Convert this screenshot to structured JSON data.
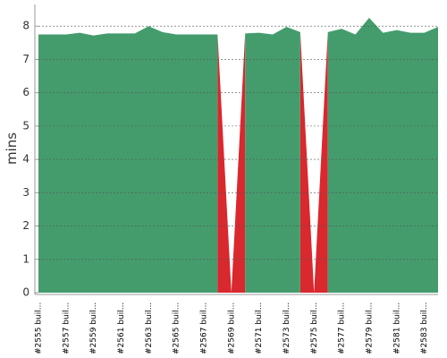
{
  "chart_data": {
    "type": "area",
    "y_label": "mins",
    "categories": [
      "#2555 buil...",
      null,
      "#2557 buil...",
      null,
      "#2559 buil...",
      null,
      "#2561 buil...",
      null,
      "#2563 buil...",
      null,
      "#2565 buil...",
      null,
      "#2567 buil...",
      null,
      "#2569 buil...",
      null,
      "#2571 buil...",
      null,
      "#2573 buil...",
      null,
      "#2575 buil...",
      null,
      "#2577 buil...",
      null,
      "#2579 buil...",
      null,
      "#2581 buil...",
      null,
      "#2583 buil...",
      null
    ],
    "series": [
      {
        "color": "#d9282e",
        "values": [
          null,
          null,
          null,
          null,
          null,
          null,
          null,
          null,
          null,
          null,
          null,
          null,
          null,
          7.75,
          0,
          7.78,
          null,
          null,
          null,
          7.82,
          0,
          7.82,
          null,
          null,
          null,
          null,
          null,
          null,
          null,
          null
        ]
      },
      {
        "color": "#449c6d",
        "values": [
          7.75,
          7.75,
          7.75,
          7.8,
          7.72,
          7.78,
          7.78,
          7.78,
          8.0,
          7.82,
          7.75,
          7.75,
          7.75,
          7.75,
          null,
          7.78,
          7.8,
          7.75,
          7.98,
          7.82,
          null,
          7.82,
          7.92,
          7.75,
          8.25,
          7.8,
          7.88,
          7.8,
          7.8,
          7.98
        ]
      }
    ],
    "ylim": [
      0,
      8.65
    ],
    "yticks": [
      0,
      1,
      2,
      3,
      4,
      5,
      6,
      7,
      8
    ],
    "grid": true
  }
}
